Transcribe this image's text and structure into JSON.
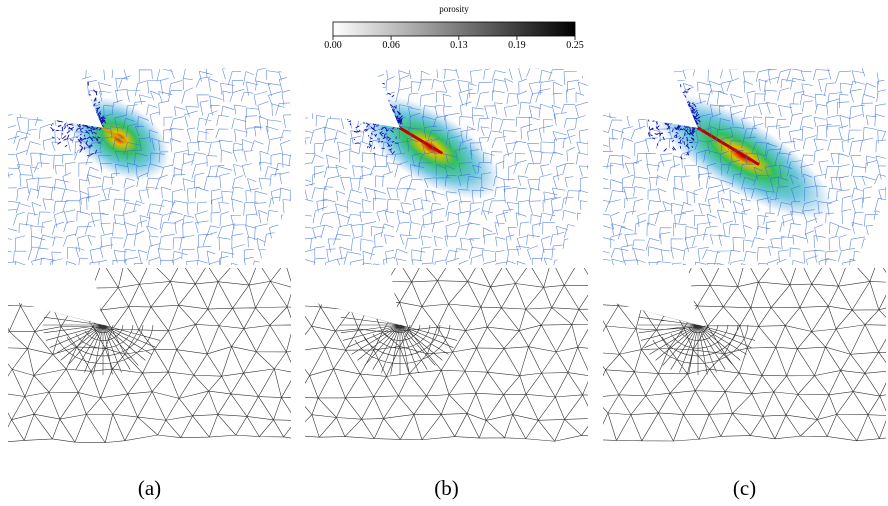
{
  "colorbar": {
    "title": "porosity",
    "ticks": [
      {
        "value": 0,
        "label": "0.00"
      },
      {
        "value": 0.06,
        "label": "0.06"
      },
      {
        "value": 0.13,
        "label": "0.13"
      },
      {
        "value": 0.19,
        "label": "0.19"
      },
      {
        "value": 0.25,
        "label": "0.25"
      }
    ]
  },
  "panels": [
    {
      "caption": "(a)"
    },
    {
      "caption": "(b)"
    },
    {
      "caption": "(c)"
    }
  ]
}
